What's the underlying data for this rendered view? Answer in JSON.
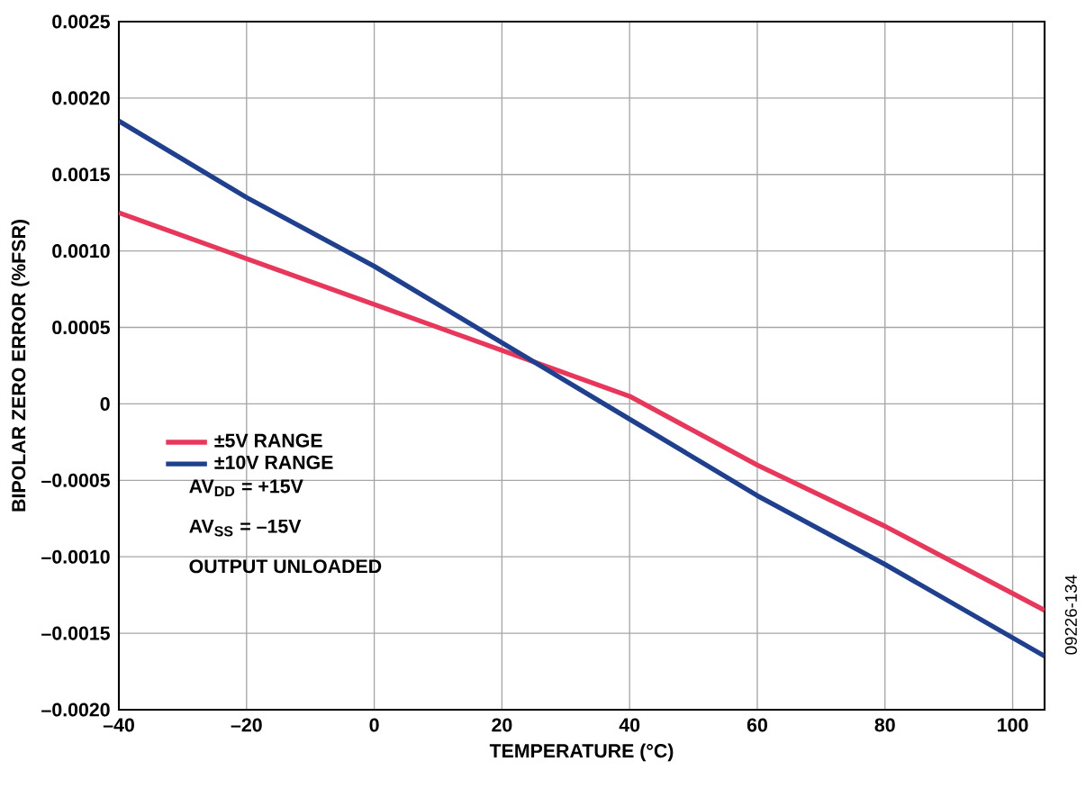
{
  "chart_data": {
    "type": "line",
    "xlabel": "TEMPERATURE (°C)",
    "ylabel": "BIPOLAR ZERO ERROR (%FSR)",
    "x": [
      -40,
      -20,
      0,
      20,
      40,
      60,
      80,
      105
    ],
    "series": [
      {
        "name": "±5V RANGE",
        "color": "#e8375a",
        "values": [
          0.00125,
          0.00095,
          0.00065,
          0.00035,
          5e-05,
          -0.0004,
          -0.0008,
          -0.00135
        ]
      },
      {
        "name": "±10V RANGE",
        "color": "#1f3f8f",
        "values": [
          0.00185,
          0.00135,
          0.0009,
          0.0004,
          -0.0001,
          -0.0006,
          -0.00105,
          -0.00165
        ]
      }
    ],
    "xlim": [
      -40,
      105
    ],
    "ylim": [
      -0.002,
      0.0025
    ],
    "xticks": [
      {
        "value": -40,
        "label": "–40"
      },
      {
        "value": -20,
        "label": "–20"
      },
      0,
      20,
      40,
      60,
      80,
      100
    ],
    "yticks": [
      {
        "value": -0.002,
        "label": "–0.0020"
      },
      {
        "value": -0.0015,
        "label": "–0.0015"
      },
      {
        "value": -0.001,
        "label": "–0.0010"
      },
      {
        "value": -0.0005,
        "label": "–0.0005"
      },
      {
        "value": 0,
        "label": "0"
      },
      {
        "value": 0.0005,
        "label": "0.0005"
      },
      {
        "value": 0.001,
        "label": "0.0010"
      },
      {
        "value": 0.0015,
        "label": "0.0015"
      },
      {
        "value": 0.002,
        "label": "0.0020"
      },
      {
        "value": 0.0025,
        "label": "0.0025"
      }
    ],
    "grid": true,
    "legend": "center left",
    "marker": "none",
    "line_style": "solid",
    "annotations": [
      "AV$_{DD}$ = +15V",
      "AV$_{SS}$ = –15V",
      "OUTPUT UNLOADED",
      "09226-134"
    ]
  }
}
